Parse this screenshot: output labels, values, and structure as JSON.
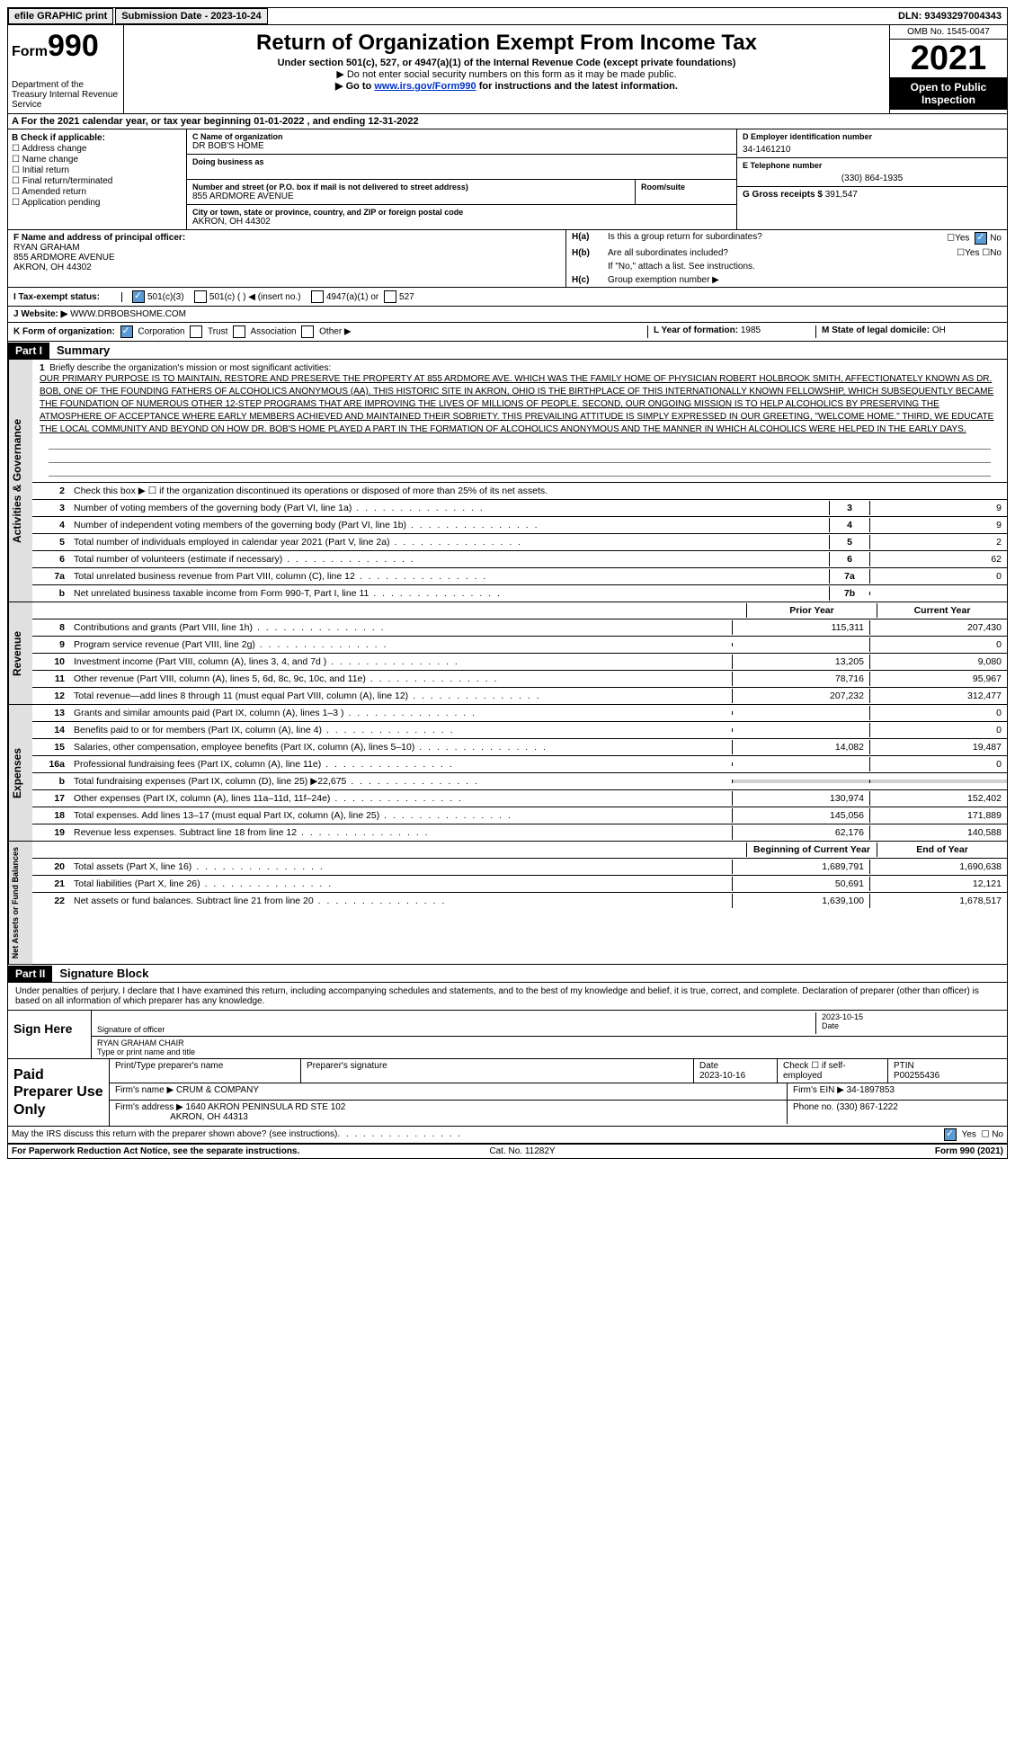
{
  "topbar": {
    "efile": "efile GRAPHIC print",
    "submission": "Submission Date - 2023-10-24",
    "dln": "DLN: 93493297004343"
  },
  "header": {
    "form_prefix": "Form",
    "form_number": "990",
    "title": "Return of Organization Exempt From Income Tax",
    "subtitle": "Under section 501(c), 527, or 4947(a)(1) of the Internal Revenue Code (except private foundations)",
    "note1": "▶ Do not enter social security numbers on this form as it may be made public.",
    "note2_prefix": "▶ Go to ",
    "note2_link": "www.irs.gov/Form990",
    "note2_suffix": " for instructions and the latest information.",
    "dept": "Department of the Treasury Internal Revenue Service",
    "omb": "OMB No. 1545-0047",
    "year": "2021",
    "open": "Open to Public Inspection"
  },
  "section_a": "A For the 2021 calendar year, or tax year beginning 01-01-2022   , and ending 12-31-2022",
  "section_b": {
    "label": "B Check if applicable:",
    "items": [
      "Address change",
      "Name change",
      "Initial return",
      "Final return/terminated",
      "Amended return",
      "Application pending"
    ]
  },
  "section_c": {
    "label": "C Name of organization",
    "org": "DR BOB'S HOME",
    "dba_label": "Doing business as",
    "addr_label": "Number and street (or P.O. box if mail is not delivered to street address)",
    "room_label": "Room/suite",
    "addr": "855 ARDMORE AVENUE",
    "city_label": "City or town, state or province, country, and ZIP or foreign postal code",
    "city": "AKRON, OH  44302"
  },
  "section_d": {
    "label": "D Employer identification number",
    "ein": "34-1461210"
  },
  "section_e": {
    "label": "E Telephone number",
    "phone": "(330) 864-1935"
  },
  "section_g": {
    "label": "G Gross receipts $",
    "amount": "391,547"
  },
  "section_f": {
    "label": "F  Name and address of principal officer:",
    "name": "RYAN GRAHAM",
    "addr1": "855 ARDMORE AVENUE",
    "addr2": "AKRON, OH  44302"
  },
  "section_h": {
    "ha": "Is this a group return for subordinates?",
    "hb": "Are all subordinates included?",
    "hb_note": "If \"No,\" attach a list. See instructions.",
    "hc": "Group exemption number ▶",
    "yes": "Yes",
    "no": "No"
  },
  "tax_exempt": {
    "label": "I  Tax-exempt status:",
    "opt1": "501(c)(3)",
    "opt2": "501(c) (  ) ◀ (insert no.)",
    "opt3": "4947(a)(1) or",
    "opt4": "527"
  },
  "section_j": {
    "label": "J Website: ▶",
    "url": "WWW.DRBOBSHOME.COM"
  },
  "section_k": {
    "label": "K Form of organization:",
    "corp": "Corporation",
    "trust": "Trust",
    "assoc": "Association",
    "other": "Other ▶"
  },
  "section_l": {
    "label": "L Year of formation:",
    "year": "1985"
  },
  "section_m": {
    "label": "M State of legal domicile:",
    "state": "OH"
  },
  "part1": {
    "label": "Part I",
    "title": "Summary",
    "tab1": "Activities & Governance",
    "tab2": "Revenue",
    "tab3": "Expenses",
    "tab4": "Net Assets or Fund Balances",
    "line1_label": "Briefly describe the organization's mission or most significant activities:",
    "mission": "OUR PRIMARY PURPOSE IS TO MAINTAIN, RESTORE AND PRESERVE THE PROPERTY AT 855 ARDMORE AVE. WHICH WAS THE FAMILY HOME OF PHYSICIAN ROBERT HOLBROOK SMITH, AFFECTIONATELY KNOWN AS DR. BOB, ONE OF THE FOUNDING FATHERS OF ALCOHOLICS ANONYMOUS (AA). THIS HISTORIC SITE IN AKRON, OHIO IS THE BIRTHPLACE OF THIS INTERNATIONALLY KNOWN FELLOWSHIP, WHICH SUBSEQUENTLY BECAME THE FOUNDATION OF NUMEROUS OTHER 12-STEP PROGRAMS THAT ARE IMPROVING THE LIVES OF MILLIONS OF PEOPLE. SECOND, OUR ONGOING MISSION IS TO HELP ALCOHOLICS BY PRESERVING THE ATMOSPHERE OF ACCEPTANCE WHERE EARLY MEMBERS ACHIEVED AND MAINTAINED THEIR SOBRIETY. THIS PREVAILING ATTITUDE IS SIMPLY EXPRESSED IN OUR GREETING, \"WELCOME HOME.\" THIRD, WE EDUCATE THE LOCAL COMMUNITY AND BEYOND ON HOW DR. BOB'S HOME PLAYED A PART IN THE FORMATION OF ALCOHOLICS ANONYMOUS AND THE MANNER IN WHICH ALCOHOLICS WERE HELPED IN THE EARLY DAYS.",
    "line2": "Check this box ▶ ☐ if the organization discontinued its operations or disposed of more than 25% of its net assets.",
    "lines_small": [
      {
        "n": "3",
        "d": "Number of voting members of the governing body (Part VI, line 1a)",
        "c": "3",
        "v": "9"
      },
      {
        "n": "4",
        "d": "Number of independent voting members of the governing body (Part VI, line 1b)",
        "c": "4",
        "v": "9"
      },
      {
        "n": "5",
        "d": "Total number of individuals employed in calendar year 2021 (Part V, line 2a)",
        "c": "5",
        "v": "2"
      },
      {
        "n": "6",
        "d": "Total number of volunteers (estimate if necessary)",
        "c": "6",
        "v": "62"
      },
      {
        "n": "7a",
        "d": "Total unrelated business revenue from Part VIII, column (C), line 12",
        "c": "7a",
        "v": "0"
      },
      {
        "n": "b",
        "d": "Net unrelated business taxable income from Form 990-T, Part I, line 11",
        "c": "7b",
        "v": ""
      }
    ],
    "col_prior": "Prior Year",
    "col_current": "Current Year",
    "col_begin": "Beginning of Current Year",
    "col_end": "End of Year",
    "revenue_lines": [
      {
        "n": "8",
        "d": "Contributions and grants (Part VIII, line 1h)",
        "p": "115,311",
        "c": "207,430"
      },
      {
        "n": "9",
        "d": "Program service revenue (Part VIII, line 2g)",
        "p": "",
        "c": "0"
      },
      {
        "n": "10",
        "d": "Investment income (Part VIII, column (A), lines 3, 4, and 7d )",
        "p": "13,205",
        "c": "9,080"
      },
      {
        "n": "11",
        "d": "Other revenue (Part VIII, column (A), lines 5, 6d, 8c, 9c, 10c, and 11e)",
        "p": "78,716",
        "c": "95,967"
      },
      {
        "n": "12",
        "d": "Total revenue—add lines 8 through 11 (must equal Part VIII, column (A), line 12)",
        "p": "207,232",
        "c": "312,477"
      }
    ],
    "expense_lines": [
      {
        "n": "13",
        "d": "Grants and similar amounts paid (Part IX, column (A), lines 1–3 )",
        "p": "",
        "c": "0"
      },
      {
        "n": "14",
        "d": "Benefits paid to or for members (Part IX, column (A), line 4)",
        "p": "",
        "c": "0"
      },
      {
        "n": "15",
        "d": "Salaries, other compensation, employee benefits (Part IX, column (A), lines 5–10)",
        "p": "14,082",
        "c": "19,487"
      },
      {
        "n": "16a",
        "d": "Professional fundraising fees (Part IX, column (A), line 11e)",
        "p": "",
        "c": "0"
      },
      {
        "n": "b",
        "d": "Total fundraising expenses (Part IX, column (D), line 25) ▶22,675",
        "p": "shaded",
        "c": "shaded"
      },
      {
        "n": "17",
        "d": "Other expenses (Part IX, column (A), lines 11a–11d, 11f–24e)",
        "p": "130,974",
        "c": "152,402"
      },
      {
        "n": "18",
        "d": "Total expenses. Add lines 13–17 (must equal Part IX, column (A), line 25)",
        "p": "145,056",
        "c": "171,889"
      },
      {
        "n": "19",
        "d": "Revenue less expenses. Subtract line 18 from line 12",
        "p": "62,176",
        "c": "140,588"
      }
    ],
    "asset_lines": [
      {
        "n": "20",
        "d": "Total assets (Part X, line 16)",
        "p": "1,689,791",
        "c": "1,690,638"
      },
      {
        "n": "21",
        "d": "Total liabilities (Part X, line 26)",
        "p": "50,691",
        "c": "12,121"
      },
      {
        "n": "22",
        "d": "Net assets or fund balances. Subtract line 21 from line 20",
        "p": "1,639,100",
        "c": "1,678,517"
      }
    ]
  },
  "part2": {
    "label": "Part II",
    "title": "Signature Block",
    "text": "Under penalties of perjury, I declare that I have examined this return, including accompanying schedules and statements, and to the best of my knowledge and belief, it is true, correct, and complete. Declaration of preparer (other than officer) is based on all information of which preparer has any knowledge.",
    "sign_here": "Sign Here",
    "sig_officer": "Signature of officer",
    "sig_date": "2023-10-15",
    "date_label": "Date",
    "officer_name": "RYAN GRAHAM CHAIR",
    "type_name": "Type or print name and title",
    "paid_prep": "Paid Preparer Use Only",
    "prep_name_label": "Print/Type preparer's name",
    "prep_sig_label": "Preparer's signature",
    "prep_date": "2023-10-16",
    "check_self": "Check ☐ if self-employed",
    "ptin_label": "PTIN",
    "ptin": "P00255436",
    "firm_name_label": "Firm's name    ▶",
    "firm_name": "CRUM & COMPANY",
    "firm_ein_label": "Firm's EIN ▶",
    "firm_ein": "34-1897853",
    "firm_addr_label": "Firm's address ▶",
    "firm_addr": "1640 AKRON PENINSULA RD STE 102",
    "firm_city": "AKRON, OH  44313",
    "firm_phone_label": "Phone no.",
    "firm_phone": "(330) 867-1222"
  },
  "footer": {
    "discuss": "May the IRS discuss this return with the preparer shown above? (see instructions)",
    "yes": "Yes",
    "no": "No",
    "paperwork": "For Paperwork Reduction Act Notice, see the separate instructions.",
    "cat": "Cat. No. 11282Y",
    "form": "Form 990 (2021)"
  }
}
